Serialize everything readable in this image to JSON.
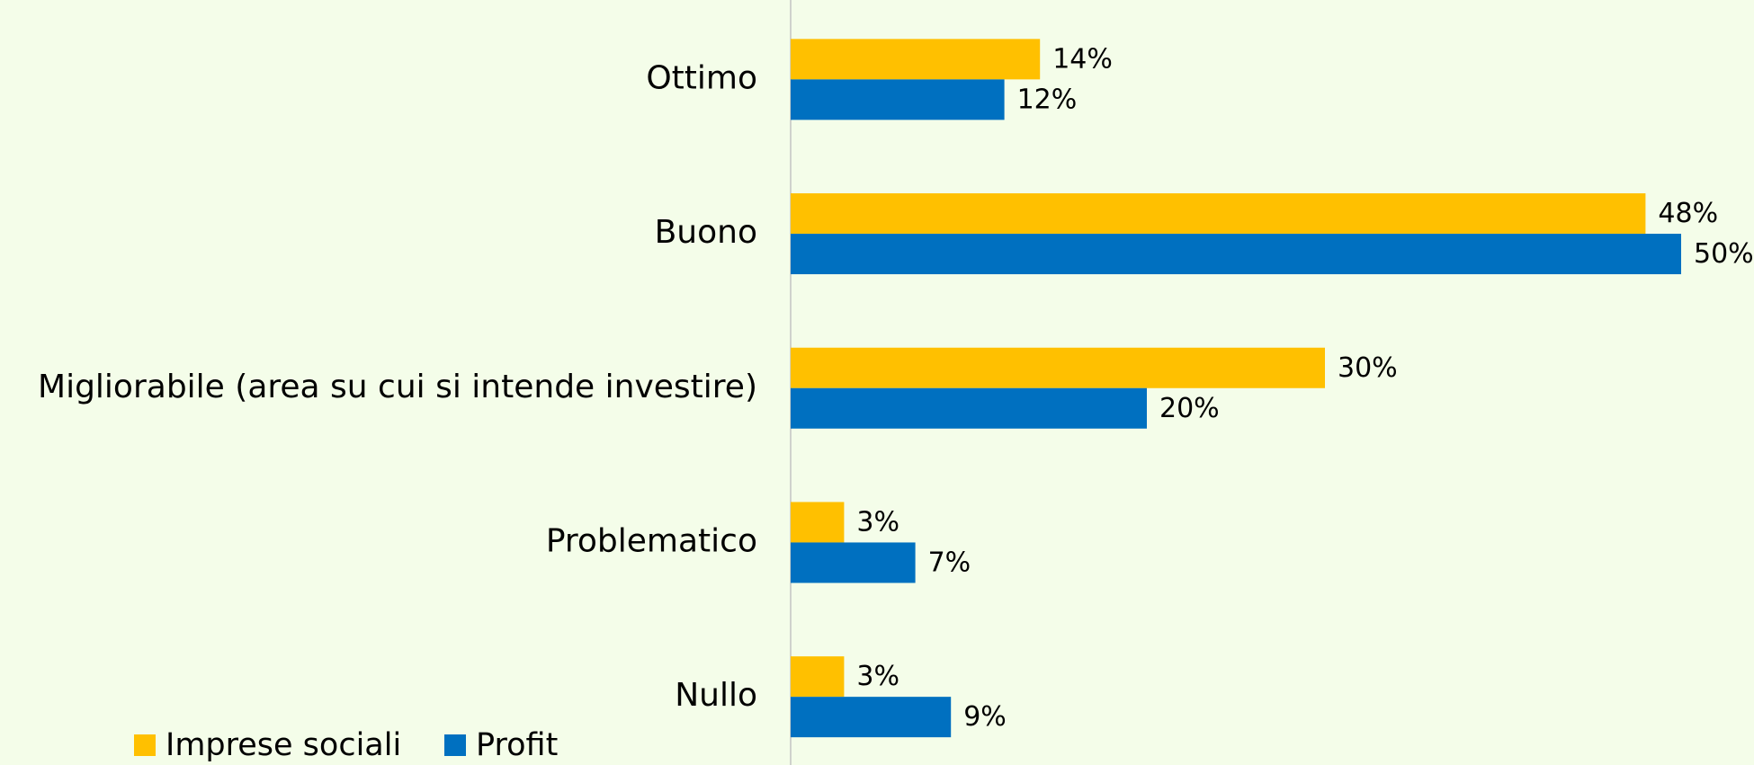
{
  "chart_data": {
    "type": "hbar",
    "categories": [
      "Ottimo",
      "Buono",
      "Migliorabile (area su cui si intende investire)",
      "Problematico",
      "Nullo"
    ],
    "series": [
      {
        "name": "Imprese sociali",
        "color": "#ffc000",
        "values": [
          14,
          48,
          30,
          3,
          3
        ],
        "value_labels": [
          "14%",
          "48%",
          "30%",
          "3%",
          "3%"
        ]
      },
      {
        "name": "Profit",
        "color": "#0070c0",
        "values": [
          12,
          50,
          20,
          7,
          9
        ],
        "value_labels": [
          "12%",
          "50%",
          "20%",
          "7%",
          "9%"
        ]
      }
    ],
    "legend": "bottom-left"
  }
}
